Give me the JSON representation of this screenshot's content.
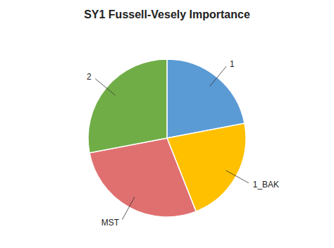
{
  "chart_data": {
    "type": "pie",
    "title": "SY1 Fussell-Vesely Importance",
    "categories": [
      "1",
      "1_BAK",
      "MST",
      "2"
    ],
    "values": [
      22,
      22,
      28,
      28
    ],
    "colors": [
      "#5b9bd5",
      "#ffc000",
      "#e07070",
      "#70ad47"
    ]
  }
}
